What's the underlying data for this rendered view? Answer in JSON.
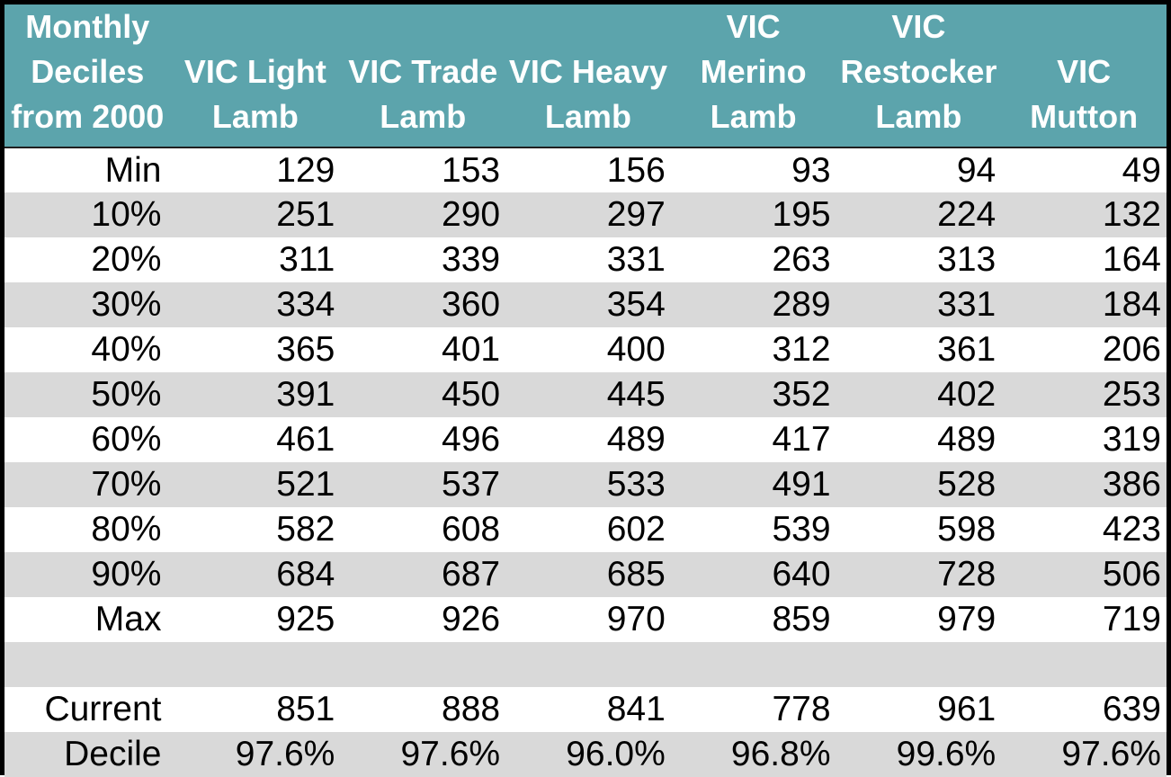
{
  "table": {
    "header": {
      "corner": "Monthly\nDeciles\nfrom 2000",
      "columns": [
        "VIC Light\nLamb",
        "VIC Trade\nLamb",
        "VIC Heavy\nLamb",
        "VIC\nMerino\nLamb",
        "VIC\nRestocker\nLamb",
        "VIC\nMutton"
      ]
    },
    "rows": [
      {
        "label": "Min",
        "values": [
          "129",
          "153",
          "156",
          "93",
          "94",
          "49"
        ]
      },
      {
        "label": "10%",
        "values": [
          "251",
          "290",
          "297",
          "195",
          "224",
          "132"
        ]
      },
      {
        "label": "20%",
        "values": [
          "311",
          "339",
          "331",
          "263",
          "313",
          "164"
        ]
      },
      {
        "label": "30%",
        "values": [
          "334",
          "360",
          "354",
          "289",
          "331",
          "184"
        ]
      },
      {
        "label": "40%",
        "values": [
          "365",
          "401",
          "400",
          "312",
          "361",
          "206"
        ]
      },
      {
        "label": "50%",
        "values": [
          "391",
          "450",
          "445",
          "352",
          "402",
          "253"
        ]
      },
      {
        "label": "60%",
        "values": [
          "461",
          "496",
          "489",
          "417",
          "489",
          "319"
        ]
      },
      {
        "label": "70%",
        "values": [
          "521",
          "537",
          "533",
          "491",
          "528",
          "386"
        ]
      },
      {
        "label": "80%",
        "values": [
          "582",
          "608",
          "602",
          "539",
          "598",
          "423"
        ]
      },
      {
        "label": "90%",
        "values": [
          "684",
          "687",
          "685",
          "640",
          "728",
          "506"
        ]
      },
      {
        "label": "Max",
        "values": [
          "925",
          "926",
          "970",
          "859",
          "979",
          "719"
        ]
      },
      {
        "label": "",
        "values": [
          "",
          "",
          "",
          "",
          "",
          ""
        ]
      },
      {
        "label": "Current",
        "values": [
          "851",
          "888",
          "841",
          "778",
          "961",
          "639"
        ]
      },
      {
        "label": "Decile",
        "values": [
          "97.6%",
          "97.6%",
          "96.0%",
          "96.8%",
          "99.6%",
          "97.6%"
        ]
      }
    ]
  },
  "colors": {
    "header_bg": "#5CA4AC",
    "header_text": "#FFFFFF",
    "row_bg": "#FFFFFF",
    "row_alt_bg": "#D9D9D9",
    "body_text": "#000000",
    "border": "#000000"
  },
  "chart_data": {
    "type": "table",
    "title": "Monthly Deciles from 2000",
    "columns": [
      "VIC Light Lamb",
      "VIC Trade Lamb",
      "VIC Heavy Lamb",
      "VIC Merino Lamb",
      "VIC Restocker Lamb",
      "VIC Mutton"
    ],
    "row_labels": [
      "Min",
      "10%",
      "20%",
      "30%",
      "40%",
      "50%",
      "60%",
      "70%",
      "80%",
      "90%",
      "Max",
      "Current",
      "Decile"
    ],
    "values": [
      [
        129,
        153,
        156,
        93,
        94,
        49
      ],
      [
        251,
        290,
        297,
        195,
        224,
        132
      ],
      [
        311,
        339,
        331,
        263,
        313,
        164
      ],
      [
        334,
        360,
        354,
        289,
        331,
        184
      ],
      [
        365,
        401,
        400,
        312,
        361,
        206
      ],
      [
        391,
        450,
        445,
        352,
        402,
        253
      ],
      [
        461,
        496,
        489,
        417,
        489,
        319
      ],
      [
        521,
        537,
        533,
        491,
        528,
        386
      ],
      [
        582,
        608,
        602,
        539,
        598,
        423
      ],
      [
        684,
        687,
        685,
        640,
        728,
        506
      ],
      [
        925,
        926,
        970,
        859,
        979,
        719
      ],
      [
        851,
        888,
        841,
        778,
        961,
        639
      ],
      [
        "97.6%",
        "97.6%",
        "96.0%",
        "96.8%",
        "99.6%",
        "97.6%"
      ]
    ],
    "layout": {
      "header_fill": "#5CA4AC",
      "banding": "alternating white / #D9D9D9",
      "gridlines": "off",
      "outer_border": "thick black"
    }
  }
}
